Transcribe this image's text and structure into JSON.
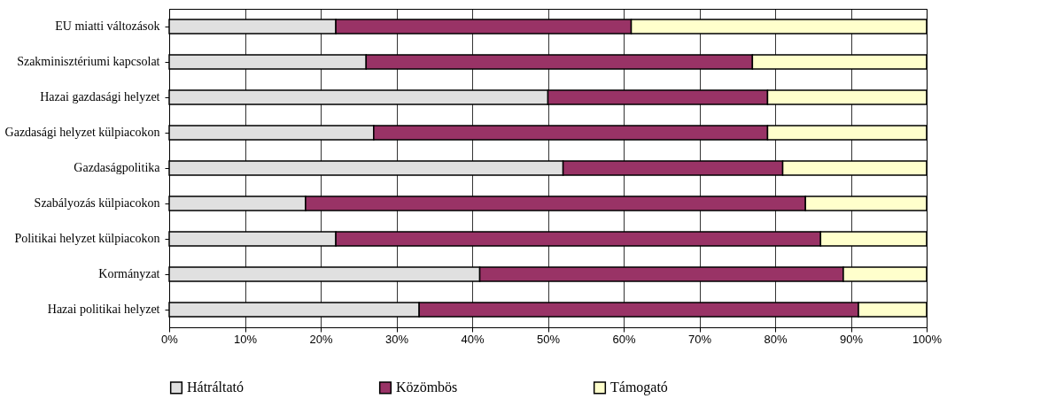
{
  "chart_data": {
    "type": "bar",
    "orientation": "horizontal",
    "stacked": true,
    "legend": "bottom",
    "grid": "x",
    "categories": [
      "EU miatti változások",
      "Szakminisztériumi kapcsolat",
      "Hazai gazdasági helyzet",
      "Gazdasági helyzet külpiacokon",
      "Gazdaságpolitika",
      "Szabályozás külpiacokon",
      "Politikai helyzet külpiacokon",
      "Kormányzat",
      "Hazai politikai helyzet"
    ],
    "series": [
      {
        "name": "Hátráltató",
        "color": "#e0e0e0",
        "values": [
          22,
          26,
          50,
          27,
          52,
          18,
          22,
          41,
          33
        ]
      },
      {
        "name": "Közömbös",
        "color": "#993366",
        "values": [
          39,
          51,
          29,
          52,
          29,
          66,
          64,
          48,
          58
        ]
      },
      {
        "name": "Támogató",
        "color": "#ffffcc",
        "values": [
          39,
          23,
          21,
          21,
          19,
          16,
          14,
          11,
          9
        ]
      }
    ],
    "xlim": [
      0,
      100
    ],
    "xticks": [
      {
        "value": 0,
        "label": "0%"
      },
      {
        "value": 10,
        "label": "10%"
      },
      {
        "value": 20,
        "label": "20%"
      },
      {
        "value": 30,
        "label": "30%"
      },
      {
        "value": 40,
        "label": "40%"
      },
      {
        "value": 50,
        "label": "50%"
      },
      {
        "value": 60,
        "label": "60%"
      },
      {
        "value": 70,
        "label": "70%"
      },
      {
        "value": 80,
        "label": "80%"
      },
      {
        "value": 90,
        "label": "90%"
      },
      {
        "value": 100,
        "label": "100%"
      }
    ]
  }
}
